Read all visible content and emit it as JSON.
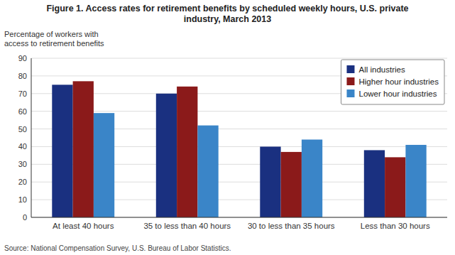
{
  "chart_data": {
    "type": "bar",
    "title": "Figure 1. Access rates for retirement benefits by scheduled weekly hours, U.S. private\nindustry, March 2013",
    "ylabel": "Percentage of workers with\naccess to retirement benefits",
    "annotations": [
      "Source: National Compensation Survey, U.S. Bureau of Labor Statistics."
    ],
    "categories": [
      "At least 40 hours",
      "35 to less than 40 hours",
      "30 to less than 35 hours",
      "Less than 30 hours"
    ],
    "series": [
      {
        "name": "All industries",
        "color": "#1a3080",
        "values": [
          75,
          70,
          40,
          38
        ]
      },
      {
        "name": "Higher hour industries",
        "color": "#8b1a1a",
        "values": [
          77,
          74,
          37,
          34
        ]
      },
      {
        "name": "Lower hour industries",
        "color": "#3a85c8",
        "values": [
          59,
          52,
          44,
          41
        ]
      }
    ],
    "ylim": [
      0,
      90
    ],
    "yticks": [
      0,
      10,
      20,
      30,
      40,
      50,
      60,
      70,
      80,
      90
    ],
    "grid": true,
    "legend": "upper right"
  }
}
